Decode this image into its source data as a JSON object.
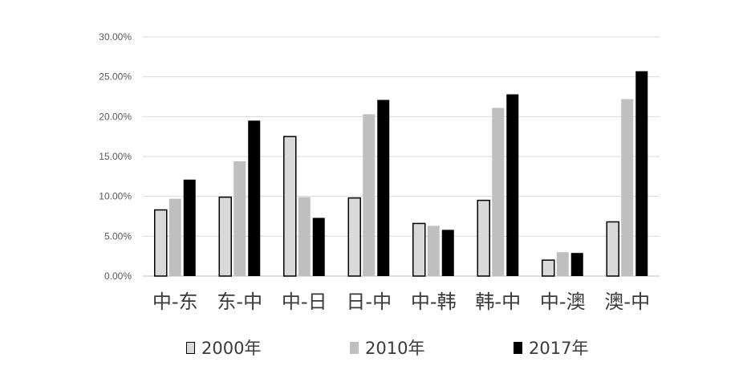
{
  "chart_data": {
    "type": "bar",
    "categories": [
      "中-东",
      "东-中",
      "中-日",
      "日-中",
      "中-韩",
      "韩-中",
      "中-澳",
      "澳-中"
    ],
    "series": [
      {
        "name": "2000年",
        "values": [
          8.3,
          9.9,
          17.5,
          9.8,
          6.6,
          9.5,
          2.0,
          6.8
        ],
        "color": "#d9d9d9",
        "stroke": "#000000"
      },
      {
        "name": "2010年",
        "values": [
          9.7,
          14.4,
          9.9,
          20.3,
          6.3,
          21.1,
          3.0,
          22.2
        ],
        "color": "#bfbfbf",
        "stroke": "none"
      },
      {
        "name": "2017年",
        "values": [
          12.1,
          19.5,
          7.3,
          22.1,
          5.8,
          22.8,
          2.9,
          25.7
        ],
        "color": "#000000",
        "stroke": "none"
      }
    ],
    "y_ticks": [
      "0.00%",
      "5.00%",
      "10.00%",
      "15.00%",
      "20.00%",
      "25.00%",
      "30.00%"
    ],
    "ylim": [
      0,
      30
    ],
    "unit": "%",
    "grid": true,
    "legend_position": "bottom",
    "title": "",
    "xlabel": "",
    "ylabel": ""
  }
}
